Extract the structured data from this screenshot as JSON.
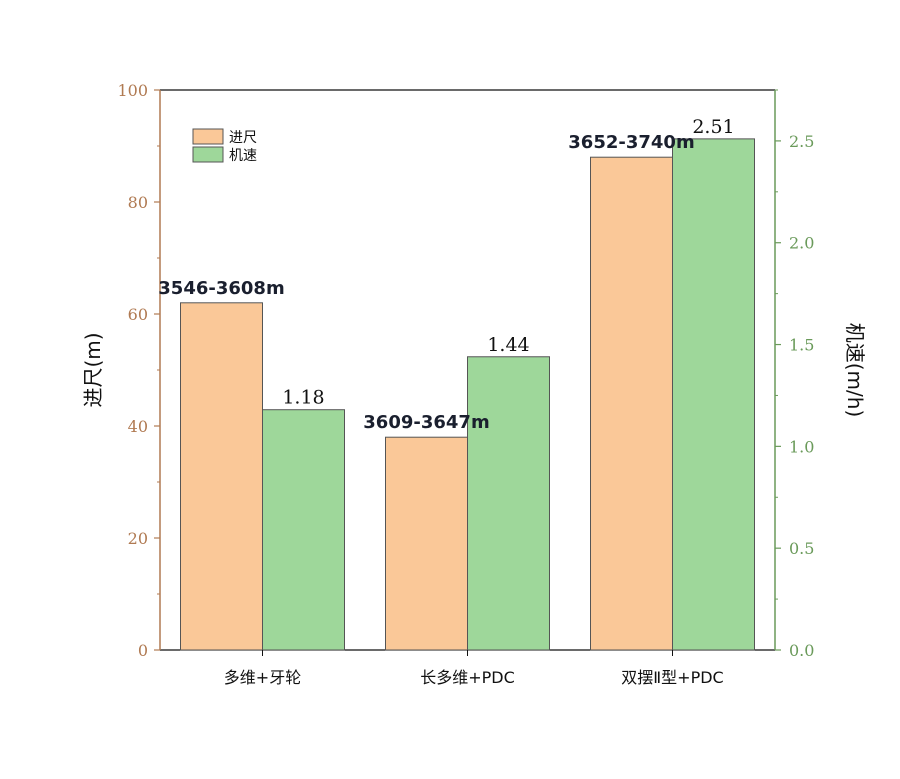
{
  "chart_data": {
    "type": "bar",
    "categories": [
      "多维+牙轮",
      "长多维+PDC",
      "双摆Ⅱ型+PDC"
    ],
    "series": [
      {
        "name": "进尺",
        "axis": "left",
        "color": "#fac898",
        "values": [
          62,
          38,
          88
        ],
        "labels": [
          "3546-3608m",
          "3609-3647m",
          "3652-3740m"
        ]
      },
      {
        "name": "机速",
        "axis": "right",
        "color": "#9ed79a",
        "values": [
          1.18,
          1.44,
          2.51
        ],
        "labels": [
          "1.18",
          "1.44",
          "2.51"
        ]
      }
    ],
    "ylabel_left": "进尺(m)",
    "ylabel_right": "机速(m/h)",
    "ylim_left": [
      0,
      100
    ],
    "ylim_right": [
      0,
      2.75
    ],
    "yticks_left": [
      "0",
      "20",
      "40",
      "60",
      "80",
      "100"
    ],
    "yticks_right": [
      "0.0",
      "0.5",
      "1.0",
      "1.5",
      "2.0",
      "2.5"
    ],
    "left_axis_color": "#b07a52",
    "right_axis_color": "#6a9a5a",
    "legend_position": "top-left",
    "grid": false
  }
}
